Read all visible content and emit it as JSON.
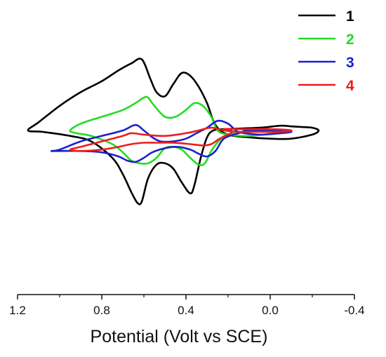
{
  "chart_data": {
    "type": "line",
    "title": "",
    "xlabel": "Potential (Volt vs SCE)",
    "ylabel": "",
    "xlim": [
      1.2,
      -0.4
    ],
    "x_reversed": true,
    "x_ticks": [
      1.2,
      0.8,
      0.4,
      0.0,
      -0.4
    ],
    "x_tick_labels": [
      "1.2",
      "0.8",
      "0.4",
      "0.0",
      "-0.4"
    ],
    "ylim": [
      -1.0,
      1.0
    ],
    "y_axis_visible": false,
    "grid": false,
    "legend": {
      "placement": "top-right"
    },
    "series": [
      {
        "name": "1",
        "color": "#000000",
        "x": [
          0.22,
          0.05,
          -0.05,
          -0.1,
          -0.15,
          -0.2,
          -0.23,
          -0.2,
          -0.1,
          0.0,
          0.1,
          0.2,
          0.26,
          0.3,
          0.34,
          0.38,
          0.42,
          0.46,
          0.5,
          0.54,
          0.57,
          0.61,
          0.66,
          0.72,
          0.8,
          0.9,
          1.0,
          1.1,
          1.15,
          1.08,
          0.95,
          0.85,
          0.75,
          0.7,
          0.66,
          0.63,
          0.61,
          0.58,
          0.54,
          0.5,
          0.46,
          0.42,
          0.38,
          0.36,
          0.33,
          0.3,
          0.27,
          0.22
        ],
        "y": [
          0.21,
          0.22,
          0.235,
          0.23,
          0.225,
          0.22,
          0.2,
          0.17,
          0.14,
          0.14,
          0.15,
          0.17,
          0.24,
          0.4,
          0.52,
          0.6,
          0.62,
          0.54,
          0.45,
          0.48,
          0.58,
          0.72,
          0.69,
          0.64,
          0.56,
          0.48,
          0.38,
          0.26,
          0.2,
          0.19,
          0.16,
          0.12,
          0.0,
          -0.12,
          -0.25,
          -0.33,
          -0.32,
          -0.15,
          -0.05,
          -0.04,
          -0.08,
          -0.18,
          -0.26,
          -0.2,
          0.0,
          0.15,
          0.2,
          0.21
        ]
      },
      {
        "name": "2",
        "color": "#22dd22",
        "x": [
          -0.02,
          0.1,
          0.2,
          0.25,
          0.28,
          0.32,
          0.36,
          0.4,
          0.45,
          0.5,
          0.55,
          0.58,
          0.6,
          0.64,
          0.7,
          0.8,
          0.9,
          0.95,
          0.92,
          0.85,
          0.75,
          0.7,
          0.66,
          0.62,
          0.58,
          0.54,
          0.5,
          0.46,
          0.42,
          0.38,
          0.34,
          0.31,
          0.28,
          0.24,
          0.2,
          0.1,
          0.02,
          -0.02
        ],
        "y": [
          0.18,
          0.16,
          0.17,
          0.2,
          0.3,
          0.38,
          0.4,
          0.35,
          0.3,
          0.3,
          0.38,
          0.44,
          0.44,
          0.4,
          0.35,
          0.3,
          0.25,
          0.2,
          0.18,
          0.16,
          0.1,
          0.04,
          -0.02,
          -0.04,
          -0.04,
          0.0,
          0.07,
          0.08,
          0.06,
          0.0,
          -0.05,
          -0.04,
          0.05,
          0.13,
          0.17,
          0.19,
          0.2,
          0.18
        ]
      },
      {
        "name": "3",
        "color": "#1a22cc",
        "x": [
          0.12,
          0.0,
          -0.08,
          -0.1,
          -0.05,
          0.05,
          0.15,
          0.2,
          0.25,
          0.3,
          0.35,
          0.4,
          0.46,
          0.52,
          0.56,
          0.6,
          0.64,
          0.7,
          0.8,
          0.9,
          1.0,
          1.04,
          1.0,
          0.9,
          0.8,
          0.72,
          0.68,
          0.64,
          0.6,
          0.56,
          0.5,
          0.44,
          0.38,
          0.34,
          0.3,
          0.26,
          0.22,
          0.15,
          0.12
        ],
        "y": [
          0.2,
          0.2,
          0.2,
          0.19,
          0.18,
          0.17,
          0.19,
          0.25,
          0.27,
          0.22,
          0.18,
          0.14,
          0.12,
          0.12,
          0.15,
          0.2,
          0.24,
          0.2,
          0.16,
          0.12,
          0.06,
          0.05,
          0.05,
          0.05,
          0.04,
          0.01,
          -0.02,
          -0.03,
          0.0,
          0.04,
          0.07,
          0.08,
          0.06,
          0.03,
          0.01,
          0.05,
          0.14,
          0.18,
          0.2
        ]
      },
      {
        "name": "4",
        "color": "#ee1c1c",
        "x": [
          0.22,
          0.1,
          0.0,
          -0.1,
          -0.05,
          0.05,
          0.15,
          0.22,
          0.28,
          0.34,
          0.4,
          0.5,
          0.6,
          0.66,
          0.7,
          0.8,
          0.9,
          0.95,
          0.9,
          0.8,
          0.72,
          0.66,
          0.6,
          0.54,
          0.46,
          0.38,
          0.32,
          0.28,
          0.24,
          0.18,
          0.22
        ],
        "y": [
          0.21,
          0.21,
          0.21,
          0.2,
          0.19,
          0.19,
          0.19,
          0.2,
          0.22,
          0.2,
          0.18,
          0.16,
          0.17,
          0.18,
          0.16,
          0.12,
          0.08,
          0.06,
          0.05,
          0.06,
          0.08,
          0.1,
          0.11,
          0.11,
          0.11,
          0.1,
          0.09,
          0.1,
          0.14,
          0.19,
          0.21
        ]
      }
    ]
  }
}
